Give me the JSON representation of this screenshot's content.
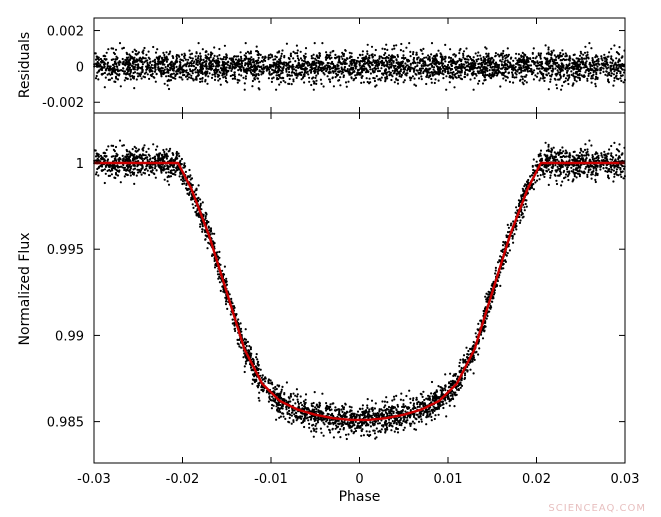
{
  "chart_data": [
    {
      "panel": "residuals",
      "type": "scatter",
      "title": "",
      "xlabel": "",
      "ylabel": "Residuals",
      "xlim": [
        -0.03,
        0.03
      ],
      "ylim": [
        -0.0026,
        0.0027
      ],
      "yticks": [
        {
          "value": 0.002,
          "label": "0.002"
        },
        {
          "value": 0,
          "label": "0"
        },
        {
          "value": -0.002,
          "label": "-0.002"
        }
      ],
      "grid": false,
      "series": [
        {
          "kind": "points",
          "color": "#000000",
          "description_of_distribution": "centered on 0, scatter roughly +/-0.0007, outliers to +/-0.0013",
          "n_points": 3400
        }
      ]
    },
    {
      "panel": "lightcurve",
      "type": "scatter",
      "title": "",
      "xlabel": "Phase",
      "ylabel": "Normalized Flux",
      "xlim": [
        -0.03,
        0.03
      ],
      "ylim": [
        0.9826,
        1.0029
      ],
      "xticks": [
        {
          "value": -0.03,
          "label": "-0.03"
        },
        {
          "value": -0.02,
          "label": "-0.02"
        },
        {
          "value": -0.01,
          "label": "-0.01"
        },
        {
          "value": 0,
          "label": "0"
        },
        {
          "value": 0.01,
          "label": "0.01"
        },
        {
          "value": 0.02,
          "label": "0.02"
        },
        {
          "value": 0.03,
          "label": "0.03"
        }
      ],
      "yticks": [
        {
          "value": 1.0,
          "label": "1"
        },
        {
          "value": 0.995,
          "label": "0.995"
        },
        {
          "value": 0.99,
          "label": "0.99"
        },
        {
          "value": 0.985,
          "label": "0.985"
        }
      ],
      "grid": false,
      "series": [
        {
          "kind": "points",
          "color": "#000000",
          "n_points": 3400
        },
        {
          "kind": "model-line",
          "color": "#cc0000",
          "x": [
            -0.03,
            -0.0205,
            -0.019,
            -0.017,
            -0.015,
            -0.013,
            -0.011,
            -0.009,
            -0.007,
            -0.005,
            -0.003,
            -0.001,
            0.0,
            0.001,
            0.003,
            0.005,
            0.007,
            0.009,
            0.011,
            0.013,
            0.015,
            0.017,
            0.019,
            0.0205,
            0.03
          ],
          "y": [
            1.0,
            1.0,
            0.9985,
            0.9958,
            0.9925,
            0.9892,
            0.9872,
            0.9862,
            0.9857,
            0.9854,
            0.9852,
            0.9851,
            0.9851,
            0.9851,
            0.9852,
            0.9854,
            0.9857,
            0.9862,
            0.9872,
            0.9892,
            0.9925,
            0.9958,
            0.9985,
            1.0,
            1.0
          ]
        }
      ]
    }
  ],
  "watermark": "SCIENCEAQ.COM"
}
